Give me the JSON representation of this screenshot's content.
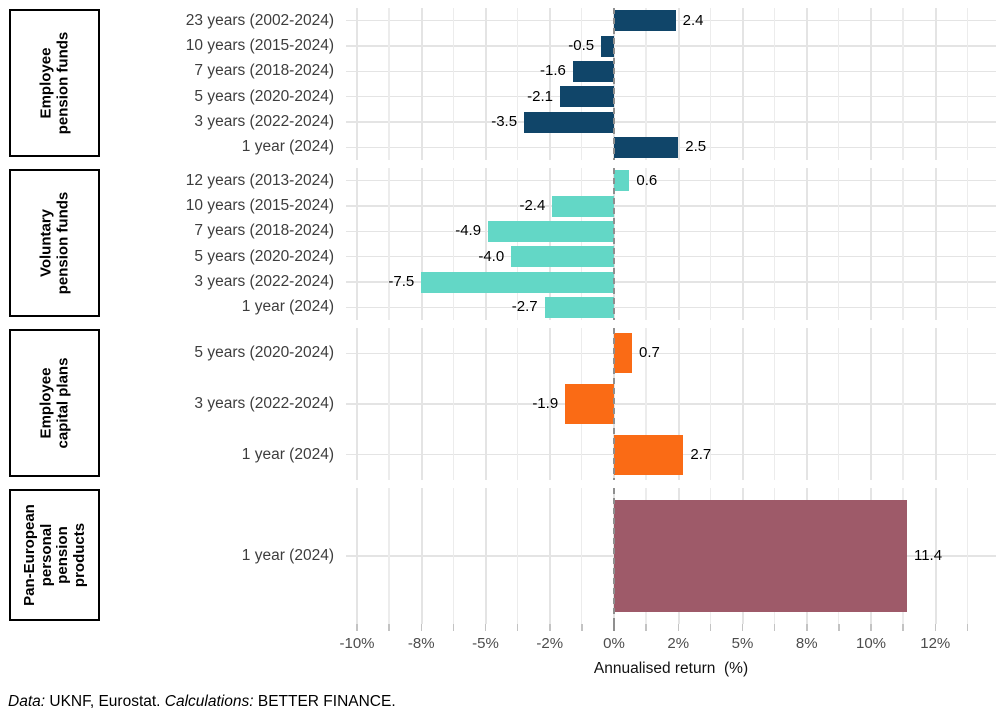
{
  "chart_data": {
    "type": "bar",
    "orientation": "horizontal",
    "xlabel": "Annualised return  (%)",
    "x_range": [
      -10.43,
      14.86
    ],
    "minor_step": 1.25,
    "grid": true,
    "zero_line": "dashed",
    "legend": "none",
    "x_ticks": [
      {
        "value": -10,
        "label": "-10%"
      },
      {
        "value": -7.5,
        "label": "-8%"
      },
      {
        "value": -5,
        "label": "-5%"
      },
      {
        "value": -2.5,
        "label": "-2%"
      },
      {
        "value": 0,
        "label": "0%"
      },
      {
        "value": 2.5,
        "label": "2%"
      },
      {
        "value": 5,
        "label": "5%"
      },
      {
        "value": 7.5,
        "label": "8%"
      },
      {
        "value": 10,
        "label": "10%"
      },
      {
        "value": 12.5,
        "label": "12%"
      }
    ],
    "panels": [
      {
        "strip_lines": [
          "Employee",
          "pension funds"
        ],
        "bar_color": "#104569",
        "rows": [
          {
            "category": "23 years (2002-2024)",
            "value": 2.4,
            "label": "2.4"
          },
          {
            "category": "10 years (2015-2024)",
            "value": -0.5,
            "label": "-0.5"
          },
          {
            "category": "7 years (2018-2024)",
            "value": -1.6,
            "label": "-1.6"
          },
          {
            "category": "5 years (2020-2024)",
            "value": -2.1,
            "label": "-2.1"
          },
          {
            "category": "3 years (2022-2024)",
            "value": -3.5,
            "label": "-3.5"
          },
          {
            "category": "1 year (2024)",
            "value": 2.5,
            "label": "2.5"
          }
        ]
      },
      {
        "strip_lines": [
          "Voluntary",
          "pension funds"
        ],
        "bar_color": "#63d7c6",
        "rows": [
          {
            "category": "12 years (2013-2024)",
            "value": 0.6,
            "label": "0.6"
          },
          {
            "category": "10 years (2015-2024)",
            "value": -2.4,
            "label": "-2.4"
          },
          {
            "category": "7 years (2018-2024)",
            "value": -4.9,
            "label": "-4.9"
          },
          {
            "category": "5 years (2020-2024)",
            "value": -4.0,
            "label": "-4.0"
          },
          {
            "category": "3 years (2022-2024)",
            "value": -7.5,
            "label": "-7.5"
          },
          {
            "category": "1 year (2024)",
            "value": -2.7,
            "label": "-2.7"
          }
        ]
      },
      {
        "strip_lines": [
          "Employee",
          "capital plans"
        ],
        "bar_color": "#fa6b15",
        "rows": [
          {
            "category": "5 years (2020-2024)",
            "value": 0.7,
            "label": "0.7"
          },
          {
            "category": "3 years (2022-2024)",
            "value": -1.9,
            "label": "-1.9"
          },
          {
            "category": "1 year (2024)",
            "value": 2.7,
            "label": "2.7"
          }
        ]
      },
      {
        "strip_lines": [
          "Pan-European",
          "personal",
          "pension",
          "products"
        ],
        "bar_color": "#9e5a69",
        "rows": [
          {
            "category": "1 year (2024)",
            "value": 11.4,
            "label": "11.4"
          }
        ]
      }
    ]
  },
  "footer": {
    "parts": [
      {
        "text": "Data:",
        "italic": true
      },
      {
        "text": " UKNF, Eurostat. ",
        "italic": false
      },
      {
        "text": "Calculations:",
        "italic": true
      },
      {
        "text": " BETTER FINANCE.",
        "italic": false
      }
    ]
  },
  "colors": {
    "background": "#ffffff",
    "grid_major": "#e4e4e4",
    "grid_minor": "#ececec",
    "zero_line": "#8f8f8f",
    "tick": "#c3c3c3",
    "tick_zero": "#8f8f8f",
    "axis_text": "#4d4d4d",
    "category_text": "#3d3d3d",
    "value_text": "#000000",
    "strip_border": "#000000",
    "strip_text": "#000000"
  }
}
